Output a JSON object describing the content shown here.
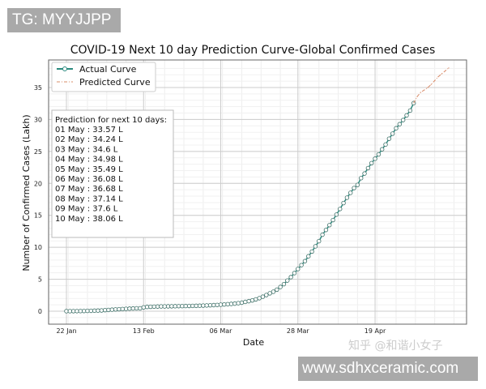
{
  "watermarks": {
    "top_left": "TG: MYYJJPP",
    "bottom_right": "www.sdhxceramic.com",
    "overlay": "知乎 @和谐小女子"
  },
  "chart_data": {
    "type": "line",
    "title": "COVID-19 Next 10 day Prediction Curve-Global Confirmed Cases",
    "xlabel": "Date",
    "ylabel": "Number of Confirmed Cases (Lakh)",
    "x_ticks": [
      "22 Jan",
      "13 Feb",
      "06 Mar",
      "28 Mar",
      "19 Apr"
    ],
    "y_ticks": [
      0,
      5,
      10,
      15,
      20,
      25,
      30,
      35
    ],
    "ylim": [
      -2,
      39
    ],
    "grid": "major and minor",
    "legend": "top-left",
    "start_date": "22 Jan",
    "series": [
      {
        "name": "Actual Curve",
        "color": "#2a8a7e",
        "marker": "circle",
        "values": [
          0.006,
          0.007,
          0.009,
          0.014,
          0.021,
          0.029,
          0.055,
          0.061,
          0.082,
          0.099,
          0.12,
          0.17,
          0.2,
          0.24,
          0.28,
          0.31,
          0.34,
          0.37,
          0.4,
          0.43,
          0.45,
          0.45,
          0.6,
          0.67,
          0.69,
          0.71,
          0.73,
          0.75,
          0.75,
          0.76,
          0.77,
          0.78,
          0.79,
          0.8,
          0.81,
          0.82,
          0.83,
          0.84,
          0.86,
          0.88,
          0.9,
          0.93,
          0.95,
          0.98,
          1.02,
          1.06,
          1.1,
          1.14,
          1.19,
          1.26,
          1.33,
          1.46,
          1.57,
          1.69,
          1.85,
          2.04,
          2.27,
          2.53,
          2.8,
          3.05,
          3.37,
          3.79,
          4.23,
          4.8,
          5.33,
          5.96,
          6.6,
          7.21,
          7.83,
          8.59,
          9.33,
          10.15,
          10.96,
          11.97,
          12.71,
          13.47,
          14.26,
          15.12,
          15.99,
          16.92,
          17.76,
          18.52,
          19.27,
          19.76,
          20.82,
          21.54,
          22.39,
          23.17,
          23.86,
          24.53,
          25.33,
          26.08,
          26.99,
          27.78,
          28.63,
          29.26,
          29.91,
          30.64,
          31.39,
          32.56
        ]
      },
      {
        "name": "Predicted Curve",
        "color": "#d98c6a",
        "style": "dash-dot",
        "dates": [
          "01 May",
          "02 May",
          "03 May",
          "04 May",
          "05 May",
          "06 May",
          "07 May",
          "08 May",
          "09 May",
          "10 May"
        ],
        "values": [
          33.57,
          34.24,
          34.6,
          34.98,
          35.49,
          36.08,
          36.68,
          37.14,
          37.6,
          38.06
        ]
      }
    ],
    "annotation": {
      "heading": "Prediction for next 10 days:",
      "lines": [
        "01 May : 33.57 L",
        "02 May : 34.24 L",
        "03 May : 34.6 L",
        "04 May : 34.98 L",
        "05 May : 35.49 L",
        "06 May : 36.08 L",
        "07 May : 36.68 L",
        "08 May : 37.14 L",
        "09 May : 37.6 L",
        "10 May : 38.06 L"
      ]
    }
  }
}
